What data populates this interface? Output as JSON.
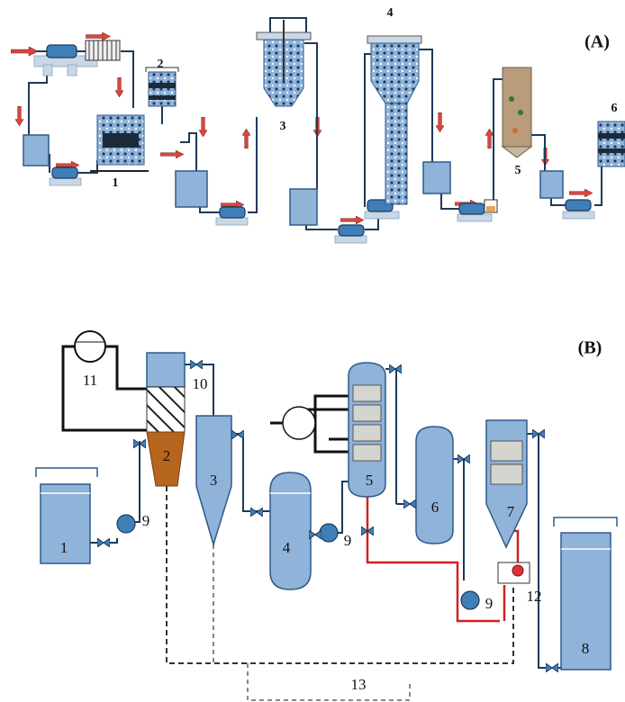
{
  "panel_a": {
    "label": "(A)",
    "units": [
      "1",
      "2",
      "3",
      "4",
      "5",
      "6"
    ]
  },
  "panel_b": {
    "label": "(B)",
    "units": [
      "1",
      "2",
      "3",
      "4",
      "5",
      "6",
      "7",
      "8"
    ],
    "pump_labels": [
      "9",
      "9",
      "9"
    ],
    "valve_label": "10",
    "blower_label": "11",
    "sensor_label": "12",
    "line_label": "13"
  }
}
